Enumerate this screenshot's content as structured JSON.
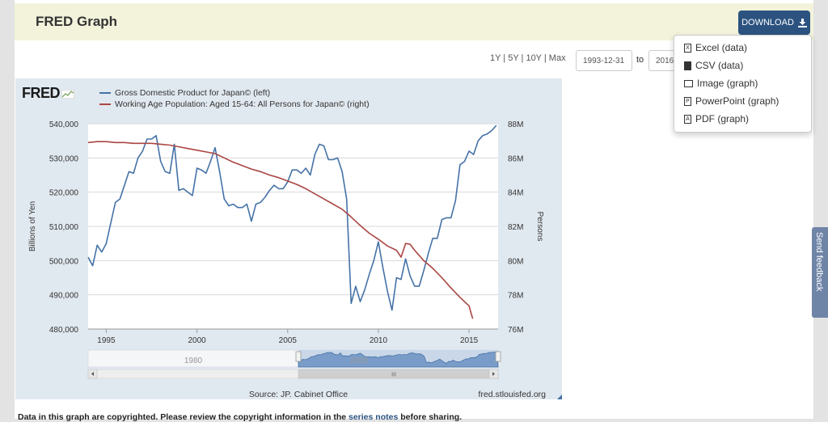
{
  "header": {
    "title": "FRED Graph",
    "download_label": "DOWNLOAD"
  },
  "toolbar": {
    "ranges": "1Y | 5Y | 10Y | Max",
    "start_date": "1993-12-31",
    "to_label": "to",
    "end_date": "2016-"
  },
  "download_menu": [
    {
      "label": "Excel (data)",
      "icon": "excel-file-icon"
    },
    {
      "label": "CSV (data)",
      "icon": "csv-file-icon"
    },
    {
      "label": "Image (graph)",
      "icon": "image-icon"
    },
    {
      "label": "PowerPoint (graph)",
      "icon": "powerpoint-file-icon"
    },
    {
      "label": "PDF (graph)",
      "icon": "pdf-file-icon"
    }
  ],
  "feedback_label": "Send feedback",
  "note": {
    "before": "Data in this graph are copyrighted. Please review the copyright information in the ",
    "link": "series notes",
    "after": " before sharing."
  },
  "chart_data": {
    "type": "line",
    "logo": "FRED",
    "source": "Source: JP. Cabinet Office",
    "site": "fred.stlouisfed.org",
    "left_axis": {
      "label": "Billions of Yen",
      "range": [
        480000,
        540000
      ],
      "ticks": [
        "480,000",
        "490,000",
        "500,000",
        "510,000",
        "520,000",
        "530,000",
        "540,000"
      ]
    },
    "right_axis": {
      "label": "Persons",
      "range": [
        76,
        88
      ],
      "ticks": [
        "76M",
        "78M",
        "80M",
        "82M",
        "84M",
        "86M",
        "88M"
      ]
    },
    "x_axis": {
      "range": [
        1994.0,
        2016.6
      ],
      "ticks": [
        "1995",
        "2000",
        "2005",
        "2010",
        "2015"
      ]
    },
    "navigator_labels": [
      "1980",
      "2000"
    ],
    "scrollbar_glyph": "III",
    "series": [
      {
        "name": "Gross Domestic Product for Japan© (left)",
        "axis": "left",
        "color": "#4572a7",
        "x": [
          1994.0,
          1994.25,
          1994.5,
          1994.75,
          1995.0,
          1995.25,
          1995.5,
          1995.75,
          1996.0,
          1996.25,
          1996.5,
          1996.75,
          1997.0,
          1997.25,
          1997.5,
          1997.75,
          1998.0,
          1998.25,
          1998.5,
          1998.75,
          1999.0,
          1999.25,
          1999.5,
          1999.75,
          2000.0,
          2000.25,
          2000.5,
          2000.75,
          2001.0,
          2001.25,
          2001.5,
          2001.75,
          2002.0,
          2002.25,
          2002.5,
          2002.75,
          2003.0,
          2003.25,
          2003.5,
          2003.75,
          2004.0,
          2004.25,
          2004.5,
          2004.75,
          2005.0,
          2005.25,
          2005.5,
          2005.75,
          2006.0,
          2006.25,
          2006.5,
          2006.75,
          2007.0,
          2007.25,
          2007.5,
          2007.75,
          2008.0,
          2008.25,
          2008.5,
          2008.75,
          2009.0,
          2009.25,
          2009.5,
          2009.75,
          2010.0,
          2010.25,
          2010.5,
          2010.75,
          2011.0,
          2011.25,
          2011.5,
          2011.75,
          2012.0,
          2012.25,
          2012.5,
          2012.75,
          2013.0,
          2013.25,
          2013.5,
          2013.75,
          2014.0,
          2014.25,
          2014.5,
          2014.75,
          2015.0,
          2015.25,
          2015.5,
          2015.75,
          2016.0,
          2016.25,
          2016.5
        ],
        "values": [
          501000,
          498500,
          504500,
          502500,
          505000,
          511000,
          517000,
          518000,
          522000,
          526000,
          525500,
          530000,
          532000,
          535500,
          535500,
          536500,
          529000,
          526000,
          525500,
          534000,
          520500,
          521000,
          520000,
          519000,
          527000,
          526500,
          525500,
          529000,
          533000,
          526000,
          518000,
          516000,
          516500,
          515500,
          515500,
          516500,
          511500,
          516500,
          517000,
          518500,
          520500,
          522000,
          521000,
          521000,
          523000,
          526500,
          526500,
          525500,
          527000,
          525000,
          531000,
          534000,
          533500,
          529500,
          529500,
          530000,
          526000,
          518000,
          487500,
          492500,
          488000,
          491500,
          496000,
          500000,
          505500,
          498000,
          491000,
          485500,
          495000,
          494500,
          500500,
          495500,
          492500,
          492500,
          497000,
          502000,
          506500,
          506500,
          512000,
          512500,
          512500,
          517500,
          528000,
          529000,
          532000,
          531000,
          535000,
          536500,
          537000,
          538000,
          539500
        ]
      },
      {
        "name": "Working Age Population: Aged 15-64: All Persons for Japan© (right)",
        "axis": "right",
        "color": "#aa4643",
        "x": [
          1994.0,
          1994.5,
          1995.0,
          1995.5,
          1996.0,
          1996.5,
          1997.0,
          1997.5,
          1998.0,
          1998.5,
          1999.0,
          1999.5,
          2000.0,
          2000.5,
          2001.0,
          2001.5,
          2002.0,
          2002.5,
          2003.0,
          2003.5,
          2004.0,
          2004.5,
          2005.0,
          2005.5,
          2006.0,
          2006.5,
          2007.0,
          2007.5,
          2008.0,
          2008.5,
          2009.0,
          2009.5,
          2010.0,
          2010.5,
          2011.0,
          2011.25,
          2011.5,
          2011.75,
          2012.0,
          2012.5,
          2013.0,
          2013.5,
          2014.0,
          2014.5,
          2015.0,
          2015.2
        ],
        "values": [
          86.9,
          86.95,
          86.95,
          86.9,
          86.9,
          86.85,
          86.85,
          86.85,
          86.8,
          86.75,
          86.65,
          86.55,
          86.45,
          86.35,
          86.25,
          86.0,
          85.75,
          85.55,
          85.35,
          85.2,
          85.0,
          84.85,
          84.65,
          84.45,
          84.2,
          83.9,
          83.6,
          83.3,
          83.0,
          82.55,
          82.05,
          81.6,
          81.25,
          80.85,
          80.6,
          80.2,
          81.0,
          80.95,
          80.6,
          80.0,
          79.55,
          79.0,
          78.4,
          77.85,
          77.35,
          76.6
        ]
      }
    ]
  }
}
